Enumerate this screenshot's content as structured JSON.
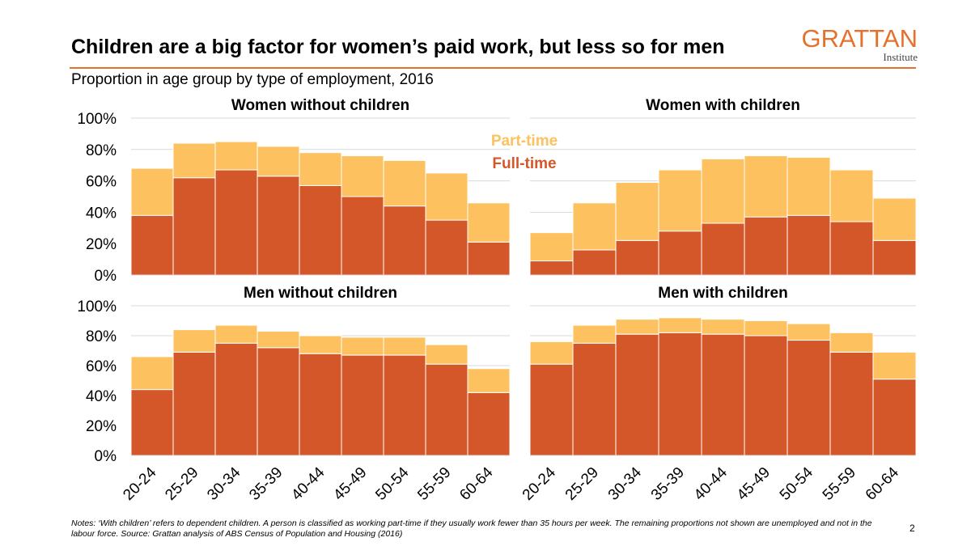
{
  "title": "Children are a big factor for women’s paid work, but less so for men",
  "subtitle": "Proportion in age group by type of employment, 2016",
  "logo": {
    "main": "GRATTAN",
    "sub": "Institute"
  },
  "notes": "Notes: ‘With children’ refers to dependent children. A person is classified as working part-time if they usually work fewer than 35 hours per week. The remaining proportions not shown are unemployed and not in the labour force. Source: Grattan analysis of ABS Census of Population and Housing (2016)",
  "page_number": "2",
  "colors": {
    "full_time": "#D4572A",
    "part_time": "#FDC25F",
    "accent": "#E5722C"
  },
  "chart_data": [
    {
      "type": "bar",
      "stacked": true,
      "title": "Women without children",
      "categories": [
        "20-24",
        "25-29",
        "30-34",
        "35-39",
        "40-44",
        "45-49",
        "50-54",
        "55-59",
        "60-64"
      ],
      "series": [
        {
          "name": "Full-time",
          "values": [
            38,
            62,
            67,
            63,
            57,
            50,
            44,
            35,
            21
          ]
        },
        {
          "name": "Part-time",
          "values": [
            30,
            22,
            18,
            19,
            21,
            26,
            29,
            30,
            25
          ]
        }
      ],
      "yticks": [
        "0%",
        "20%",
        "40%",
        "60%",
        "80%",
        "100%"
      ],
      "ylim": [
        0,
        100
      ]
    },
    {
      "type": "bar",
      "stacked": true,
      "title": "Women with children",
      "categories": [
        "20-24",
        "25-29",
        "30-34",
        "35-39",
        "40-44",
        "45-49",
        "50-54",
        "55-59",
        "60-64"
      ],
      "series": [
        {
          "name": "Full-time",
          "values": [
            9,
            16,
            22,
            28,
            33,
            37,
            38,
            34,
            22
          ]
        },
        {
          "name": "Part-time",
          "values": [
            18,
            30,
            37,
            39,
            41,
            39,
            37,
            33,
            27
          ]
        }
      ],
      "legend_labels": {
        "part_time": "Part-time",
        "full_time": "Full-time"
      },
      "ylim": [
        0,
        100
      ]
    },
    {
      "type": "bar",
      "stacked": true,
      "title": "Men without children",
      "categories": [
        "20-24",
        "25-29",
        "30-34",
        "35-39",
        "40-44",
        "45-49",
        "50-54",
        "55-59",
        "60-64"
      ],
      "series": [
        {
          "name": "Full-time",
          "values": [
            44,
            69,
            75,
            72,
            68,
            67,
            67,
            61,
            42
          ]
        },
        {
          "name": "Part-time",
          "values": [
            22,
            15,
            12,
            11,
            12,
            12,
            12,
            13,
            16
          ]
        }
      ],
      "yticks": [
        "0%",
        "20%",
        "40%",
        "60%",
        "80%",
        "100%"
      ],
      "ylim": [
        0,
        100
      ]
    },
    {
      "type": "bar",
      "stacked": true,
      "title": "Men with children",
      "categories": [
        "20-24",
        "25-29",
        "30-34",
        "35-39",
        "40-44",
        "45-49",
        "50-54",
        "55-59",
        "60-64"
      ],
      "series": [
        {
          "name": "Full-time",
          "values": [
            61,
            75,
            81,
            82,
            81,
            80,
            77,
            69,
            51
          ]
        },
        {
          "name": "Part-time",
          "values": [
            15,
            12,
            10,
            10,
            10,
            10,
            11,
            13,
            18
          ]
        }
      ],
      "ylim": [
        0,
        100
      ]
    }
  ]
}
